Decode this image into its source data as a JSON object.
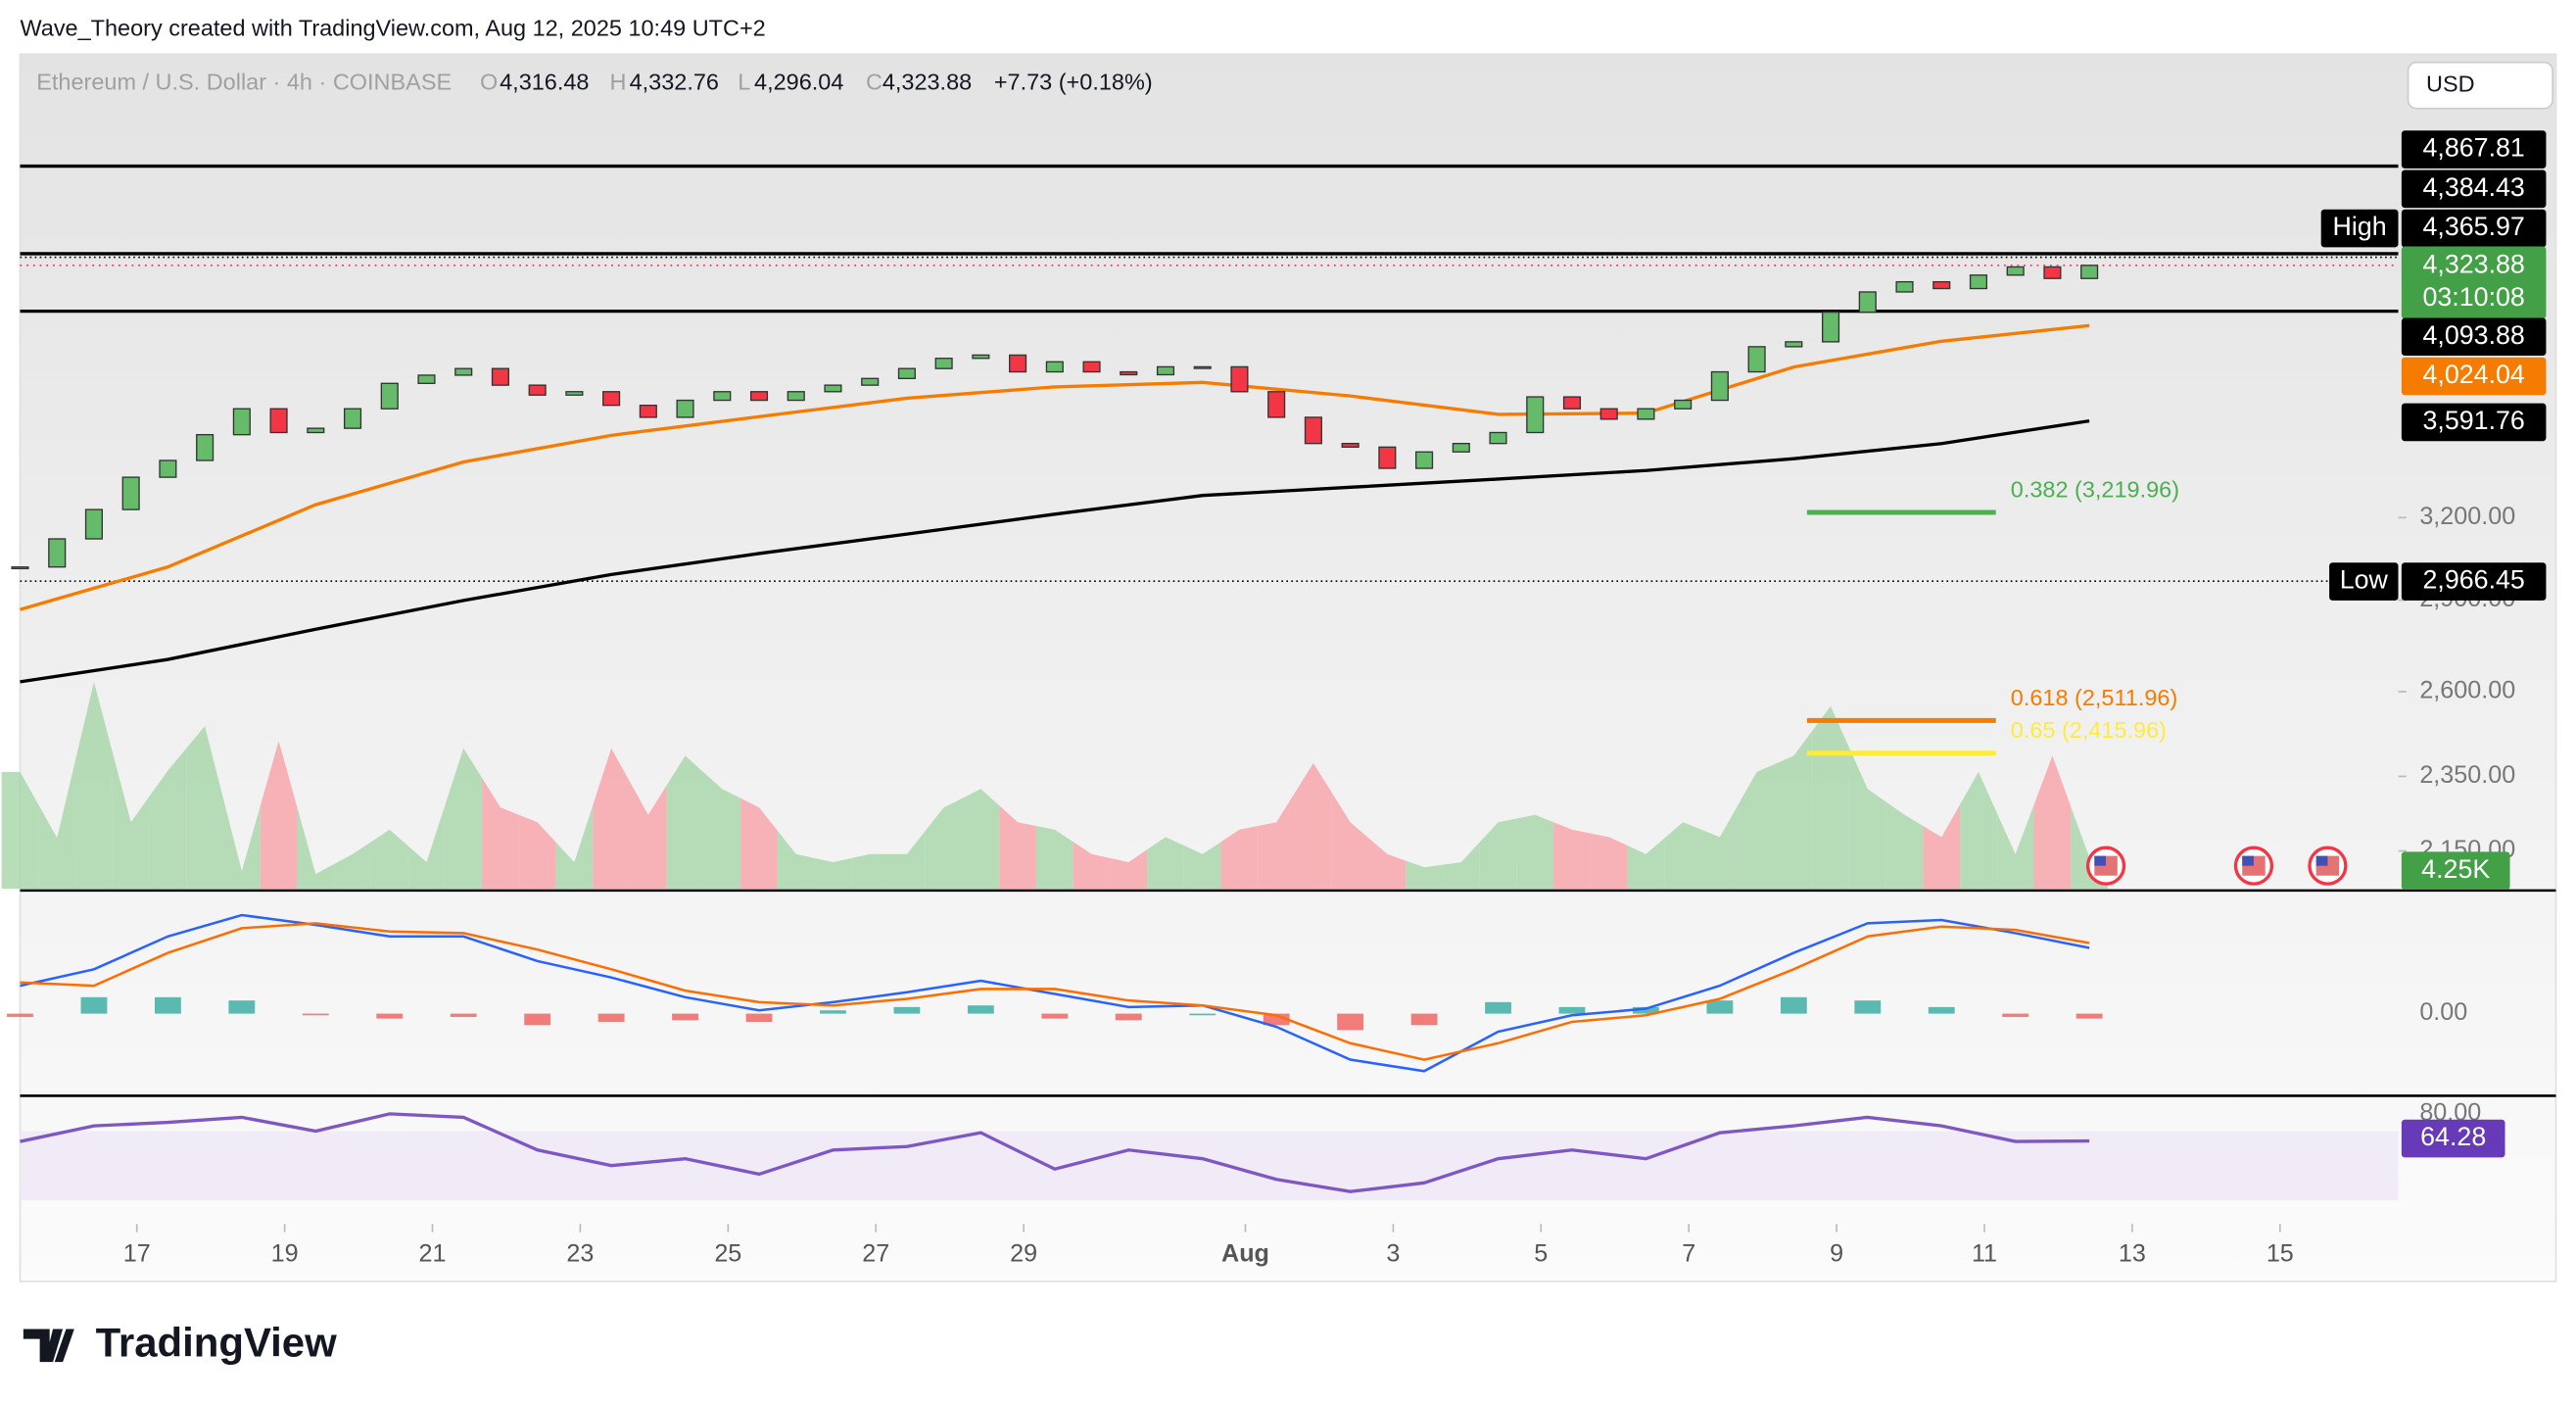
{
  "header": {
    "attribution": "Wave_Theory created with TradingView.com, Aug 12, 2025 10:49 UTC+2",
    "currency": "USD",
    "brand": "TradingView"
  },
  "chart_data": {
    "type": "candlestick",
    "title": "Ethereum / U.S. Dollar · 4h · COINBASE",
    "ohlc": [
      {
        "key": "O",
        "label": "4,316.48"
      },
      {
        "key": "H",
        "label": "4,332.76"
      },
      {
        "key": "L",
        "label": "4,296.04"
      },
      {
        "key": "C",
        "label": "4,323.88"
      }
    ],
    "change": "+7.73 (+0.18%)",
    "xlim": [
      0,
      64.36
    ],
    "xticks": [
      {
        "value": 3.16,
        "label": "17"
      },
      {
        "value": 7.16,
        "label": "19"
      },
      {
        "value": 11.16,
        "label": "21"
      },
      {
        "value": 15.16,
        "label": "23"
      },
      {
        "value": 19.16,
        "label": "25"
      },
      {
        "value": 23.16,
        "label": "27"
      },
      {
        "value": 27.16,
        "label": "29"
      },
      {
        "value": 33.16,
        "label": "Aug"
      },
      {
        "value": 37.16,
        "label": "3"
      },
      {
        "value": 41.16,
        "label": "5"
      },
      {
        "value": 45.16,
        "label": "7"
      },
      {
        "value": 49.16,
        "label": "9"
      },
      {
        "value": 53.16,
        "label": "11"
      },
      {
        "value": 57.16,
        "label": "13"
      },
      {
        "value": 61.16,
        "label": "15"
      }
    ],
    "ylim": [
      2055,
      5563
    ],
    "log_scale": true,
    "grid": false,
    "yticks": [
      {
        "value": 3200,
        "label": "3,200.00"
      },
      {
        "value": 2900,
        "label": "2,900.00"
      },
      {
        "value": 2600,
        "label": "2,600.00"
      },
      {
        "value": 2350,
        "label": "2,350.00"
      },
      {
        "value": 2150,
        "label": "2,150.00"
      }
    ],
    "color_up": "#66bb6a",
    "color_down": "#f23645",
    "values": [
      3017,
      3120,
      3231,
      3358,
      3426,
      3533,
      3644,
      3542,
      3560,
      3644,
      3756,
      3793,
      3823,
      3748,
      3704,
      3719,
      3659,
      3607,
      3681,
      3719,
      3681,
      3719,
      3748,
      3778,
      3823,
      3870,
      3885,
      3808,
      3854,
      3808,
      3795,
      3831,
      3831,
      3719,
      3607,
      3496,
      3481,
      3394,
      3461,
      3496,
      3542,
      3696,
      3644,
      3599,
      3644,
      3681,
      3808,
      3924,
      3947,
      4089,
      4189,
      4240,
      4206,
      4274,
      4316,
      4257,
      4323.88
    ],
    "last": {
      "label": "4,323.88",
      "countdown": "03:10:08",
      "color": "#43a047"
    },
    "indicators": [
      {
        "color": "#f57c00",
        "x": [
          0,
          4,
          8,
          12,
          16,
          20,
          24,
          28,
          32,
          36,
          40,
          44,
          48,
          52,
          56
        ],
        "values": [
          2868,
          3017,
          3250,
          3420,
          3530,
          3610,
          3690,
          3740,
          3760,
          3700,
          3620,
          3625,
          3830,
          3950,
          4024.04
        ],
        "last_label": "4,024.04"
      },
      {
        "color": "#000000",
        "x": [
          0,
          4,
          8,
          12,
          16,
          20,
          24,
          28,
          32,
          36,
          40,
          44,
          48,
          52,
          56
        ],
        "values": [
          2631,
          2702,
          2801,
          2899,
          2990,
          3066,
          3138,
          3213,
          3286,
          3318,
          3351,
          3385,
          3433,
          3496,
          3591.76
        ],
        "last_label": "3,591.76"
      }
    ],
    "levels": [
      {
        "value": 4867.81,
        "label": "4,867.81"
      },
      {
        "value": 4384.43,
        "label": "4,384.43"
      },
      {
        "value": 4093.88,
        "label": "4,093.88"
      }
    ],
    "high": {
      "name": "High",
      "value": 4365.97,
      "label": "4,365.97"
    },
    "low": {
      "name": "Low",
      "value": 2966.45,
      "label": "2,966.45"
    },
    "fib": [
      {
        "label": "0.382 (3,219.96)",
        "value": 3219.96,
        "color": "#4caf50"
      },
      {
        "label": "0.618 (2,511.96)",
        "value": 2511.96,
        "color": "#f57c00"
      },
      {
        "label": "0.65 (2,415.96)",
        "value": 2415.96,
        "color": "#ffeb3b"
      }
    ],
    "volume": {
      "ylim": [
        0,
        40
      ],
      "values": [
        15.8,
        6.9,
        28,
        9,
        16,
        22,
        2.4,
        20,
        2,
        4.7,
        8,
        3.6,
        19,
        11,
        9,
        3.6,
        19,
        10,
        18,
        13.5,
        11,
        4.7,
        3.6,
        4.7,
        4.7,
        11,
        13.5,
        9,
        8,
        4.7,
        3.6,
        7,
        4.7,
        8,
        9,
        17,
        9,
        4.7,
        2.9,
        3.6,
        9,
        10,
        8,
        7,
        4.7,
        9,
        7,
        15.8,
        18,
        24.7,
        13.5,
        10,
        7,
        15.8,
        4.7,
        18,
        4.25
      ],
      "last_label": "4.25K",
      "color": "#43a047"
    },
    "macd": {
      "ylim": [
        -100,
        148
      ],
      "yticks": [
        {
          "value": 0,
          "label": "0.00"
        }
      ],
      "x": [
        0,
        2,
        4,
        6,
        8,
        10,
        12,
        14,
        16,
        18,
        20,
        22,
        24,
        26,
        28,
        30,
        32,
        34,
        36,
        38,
        40,
        42,
        44,
        46,
        48,
        50,
        52,
        54,
        56
      ],
      "series": [
        {
          "color": "#2962ff",
          "values": [
            34,
            54,
            94,
            120,
            108,
            94,
            94,
            64,
            44,
            20,
            4,
            14,
            26,
            40,
            24,
            8,
            10,
            -16,
            -56,
            -70,
            -22,
            -2,
            6,
            34,
            74,
            110,
            114,
            98,
            80
          ]
        },
        {
          "color": "#ff6d00",
          "values": [
            38,
            34,
            74,
            104,
            110,
            100,
            98,
            78,
            54,
            28,
            14,
            10,
            18,
            30,
            30,
            16,
            10,
            -2,
            -36,
            -56,
            -36,
            -10,
            -2,
            18,
            54,
            94,
            106,
            102,
            86
          ]
        }
      ],
      "histogram": [
        -4,
        20,
        20,
        16,
        -2,
        -6,
        -4,
        -14,
        -10,
        -8,
        -10,
        4,
        8,
        10,
        -6,
        -8,
        0,
        -14,
        -20,
        -14,
        14,
        8,
        8,
        16,
        20,
        16,
        8,
        -4,
        -6
      ],
      "color_up": "#26a69a",
      "color_down": "#ef5350"
    },
    "rsi": {
      "ylim": [
        16.2,
        89.5
      ],
      "yticks": [
        {
          "value": 80,
          "label": "80.00"
        }
      ],
      "band": [
        30,
        70
      ],
      "color": "#7e57c2",
      "x": [
        0,
        2,
        4,
        6,
        8,
        10,
        12,
        14,
        16,
        18,
        20,
        22,
        24,
        26,
        28,
        30,
        32,
        34,
        36,
        38,
        40,
        42,
        44,
        46,
        48,
        50,
        52,
        54,
        56
      ],
      "values": [
        64,
        73,
        75,
        78,
        70,
        80,
        78,
        59,
        50,
        54,
        45,
        59,
        61,
        69,
        48,
        59,
        54,
        42,
        35,
        40,
        54,
        59,
        54,
        69,
        73,
        78,
        73,
        64,
        64.28
      ],
      "last_label": "64.28"
    }
  }
}
